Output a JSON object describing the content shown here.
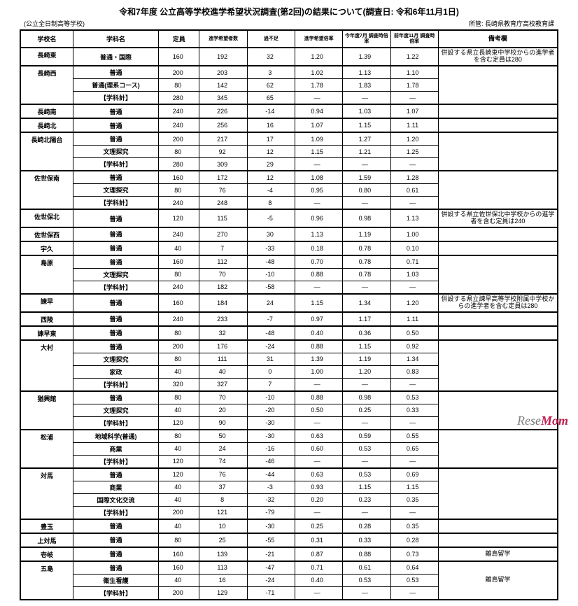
{
  "title": "令和7年度 公立高等学校進学希望状況調査(第2回)の結果について(調査日: 令和6年11月1日)",
  "subtitle_left": "(公立全日制高等学校)",
  "subtitle_right": "所管: 長崎県教育庁高校教育課",
  "headers": {
    "school": "学校名",
    "dept": "学科名",
    "capacity": "定員",
    "applicants": "進学希望者数",
    "diff": "過不足",
    "rate": "進学希望倍率",
    "rate_jul": "今年度7月\n調査時倍率",
    "rate_prev": "前年度11月\n調査時倍率",
    "remark": "備考欄"
  },
  "rows": [
    {
      "school": "長崎東",
      "dept": "普通・国際",
      "cap": "160",
      "app": "192",
      "diff": "32",
      "r": "1.20",
      "rj": "1.39",
      "rp": "1.22",
      "rem": "併設する県立長崎東中学校からの進学者を含む定員は280",
      "rs": 1,
      "topthick": true
    },
    {
      "school": "長崎西",
      "dept": "普通",
      "cap": "200",
      "app": "203",
      "diff": "3",
      "r": "1.02",
      "rj": "1.13",
      "rp": "1.10",
      "rem": "",
      "rs": 3,
      "topthick": true
    },
    {
      "school": "",
      "dept": "普通(理系コース)",
      "cap": "80",
      "app": "142",
      "diff": "62",
      "r": "1.78",
      "rj": "1.83",
      "rp": "1.78",
      "rem": ""
    },
    {
      "school": "",
      "dept": "【学科計】",
      "cap": "280",
      "app": "345",
      "diff": "65",
      "r": "—",
      "rj": "—",
      "rp": "—",
      "rem": ""
    },
    {
      "school": "長崎南",
      "dept": "普通",
      "cap": "240",
      "app": "226",
      "diff": "-14",
      "r": "0.94",
      "rj": "1.03",
      "rp": "1.07",
      "rem": "",
      "rs": 1,
      "topthick": true
    },
    {
      "school": "長崎北",
      "dept": "普通",
      "cap": "240",
      "app": "256",
      "diff": "16",
      "r": "1.07",
      "rj": "1.15",
      "rp": "1.11",
      "rem": "",
      "rs": 1,
      "topthick": true
    },
    {
      "school": "長崎北陽台",
      "dept": "普通",
      "cap": "200",
      "app": "217",
      "diff": "17",
      "r": "1.09",
      "rj": "1.27",
      "rp": "1.20",
      "rem": "",
      "rs": 3,
      "topthick": true
    },
    {
      "school": "",
      "dept": "文理探究",
      "cap": "80",
      "app": "92",
      "diff": "12",
      "r": "1.15",
      "rj": "1.21",
      "rp": "1.25",
      "rem": ""
    },
    {
      "school": "",
      "dept": "【学科計】",
      "cap": "280",
      "app": "309",
      "diff": "29",
      "r": "—",
      "rj": "—",
      "rp": "—",
      "rem": ""
    },
    {
      "school": "佐世保南",
      "dept": "普通",
      "cap": "160",
      "app": "172",
      "diff": "12",
      "r": "1.08",
      "rj": "1.59",
      "rp": "1.28",
      "rem": "",
      "rs": 3,
      "topthick": true
    },
    {
      "school": "",
      "dept": "文理探究",
      "cap": "80",
      "app": "76",
      "diff": "-4",
      "r": "0.95",
      "rj": "0.80",
      "rp": "0.61",
      "rem": ""
    },
    {
      "school": "",
      "dept": "【学科計】",
      "cap": "240",
      "app": "248",
      "diff": "8",
      "r": "—",
      "rj": "—",
      "rp": "—",
      "rem": ""
    },
    {
      "school": "佐世保北",
      "dept": "普通",
      "cap": "120",
      "app": "115",
      "diff": "-5",
      "r": "0.96",
      "rj": "0.98",
      "rp": "1.13",
      "rem": "併設する県立佐世保北中学校からの進学者を含む定員は240",
      "rs": 1,
      "topthick": true
    },
    {
      "school": "佐世保西",
      "dept": "普通",
      "cap": "240",
      "app": "270",
      "diff": "30",
      "r": "1.13",
      "rj": "1.19",
      "rp": "1.00",
      "rem": "",
      "rs": 1,
      "topthick": true
    },
    {
      "school": "宇久",
      "dept": "普通",
      "cap": "40",
      "app": "7",
      "diff": "-33",
      "r": "0.18",
      "rj": "0.78",
      "rp": "0.10",
      "rem": "",
      "rs": 1,
      "topthick": true
    },
    {
      "school": "島原",
      "dept": "普通",
      "cap": "160",
      "app": "112",
      "diff": "-48",
      "r": "0.70",
      "rj": "0.78",
      "rp": "0.71",
      "rem": "",
      "rs": 3,
      "topthick": true
    },
    {
      "school": "",
      "dept": "文理探究",
      "cap": "80",
      "app": "70",
      "diff": "-10",
      "r": "0.88",
      "rj": "0.78",
      "rp": "1.03",
      "rem": ""
    },
    {
      "school": "",
      "dept": "【学科計】",
      "cap": "240",
      "app": "182",
      "diff": "-58",
      "r": "—",
      "rj": "—",
      "rp": "—",
      "rem": ""
    },
    {
      "school": "諫早",
      "dept": "普通",
      "cap": "160",
      "app": "184",
      "diff": "24",
      "r": "1.15",
      "rj": "1.34",
      "rp": "1.20",
      "rem": "併設する県立諫早高等学校附属中学校からの進学者を含む定員は280",
      "rs": 1,
      "topthick": true
    },
    {
      "school": "西陵",
      "dept": "普通",
      "cap": "240",
      "app": "233",
      "diff": "-7",
      "r": "0.97",
      "rj": "1.17",
      "rp": "1.11",
      "rem": "",
      "rs": 1,
      "topthick": true
    },
    {
      "school": "諫早東",
      "dept": "普通",
      "cap": "80",
      "app": "32",
      "diff": "-48",
      "r": "0.40",
      "rj": "0.36",
      "rp": "0.50",
      "rem": "",
      "rs": 1,
      "topthick": true
    },
    {
      "school": "大村",
      "dept": "普通",
      "cap": "200",
      "app": "176",
      "diff": "-24",
      "r": "0.88",
      "rj": "1.15",
      "rp": "0.92",
      "rem": "",
      "rs": 4,
      "topthick": true
    },
    {
      "school": "",
      "dept": "文理探究",
      "cap": "80",
      "app": "111",
      "diff": "31",
      "r": "1.39",
      "rj": "1.19",
      "rp": "1.34",
      "rem": ""
    },
    {
      "school": "",
      "dept": "家政",
      "cap": "40",
      "app": "40",
      "diff": "0",
      "r": "1.00",
      "rj": "1.20",
      "rp": "0.83",
      "rem": ""
    },
    {
      "school": "",
      "dept": "【学科計】",
      "cap": "320",
      "app": "327",
      "diff": "7",
      "r": "—",
      "rj": "—",
      "rp": "—",
      "rem": ""
    },
    {
      "school": "猶興館",
      "dept": "普通",
      "cap": "80",
      "app": "70",
      "diff": "-10",
      "r": "0.88",
      "rj": "0.98",
      "rp": "0.53",
      "rem": "",
      "rs": 3,
      "topthick": true
    },
    {
      "school": "",
      "dept": "文理探究",
      "cap": "40",
      "app": "20",
      "diff": "-20",
      "r": "0.50",
      "rj": "0.25",
      "rp": "0.33",
      "rem": ""
    },
    {
      "school": "",
      "dept": "【学科計】",
      "cap": "120",
      "app": "90",
      "diff": "-30",
      "r": "—",
      "rj": "—",
      "rp": "—",
      "rem": ""
    },
    {
      "school": "松浦",
      "dept": "地域科学(普通)",
      "cap": "80",
      "app": "50",
      "diff": "-30",
      "r": "0.63",
      "rj": "0.59",
      "rp": "0.55",
      "rem": "",
      "rs": 3,
      "topthick": true
    },
    {
      "school": "",
      "dept": "商業",
      "cap": "40",
      "app": "24",
      "diff": "-16",
      "r": "0.60",
      "rj": "0.53",
      "rp": "0.65",
      "rem": ""
    },
    {
      "school": "",
      "dept": "【学科計】",
      "cap": "120",
      "app": "74",
      "diff": "-46",
      "r": "—",
      "rj": "—",
      "rp": "—",
      "rem": ""
    },
    {
      "school": "対馬",
      "dept": "普通",
      "cap": "120",
      "app": "76",
      "diff": "-44",
      "r": "0.63",
      "rj": "0.53",
      "rp": "0.69",
      "rem": "",
      "rs": 4,
      "topthick": true
    },
    {
      "school": "",
      "dept": "商業",
      "cap": "40",
      "app": "37",
      "diff": "-3",
      "r": "0.93",
      "rj": "1.15",
      "rp": "1.15",
      "rem": ""
    },
    {
      "school": "",
      "dept": "国際文化交流",
      "cap": "40",
      "app": "8",
      "diff": "-32",
      "r": "0.20",
      "rj": "0.23",
      "rp": "0.35",
      "rem": ""
    },
    {
      "school": "",
      "dept": "【学科計】",
      "cap": "200",
      "app": "121",
      "diff": "-79",
      "r": "—",
      "rj": "—",
      "rp": "—",
      "rem": ""
    },
    {
      "school": "豊玉",
      "dept": "普通",
      "cap": "40",
      "app": "10",
      "diff": "-30",
      "r": "0.25",
      "rj": "0.28",
      "rp": "0.35",
      "rem": "",
      "rs": 1,
      "topthick": true
    },
    {
      "school": "上対馬",
      "dept": "普通",
      "cap": "80",
      "app": "25",
      "diff": "-55",
      "r": "0.31",
      "rj": "0.33",
      "rp": "0.28",
      "rem": "",
      "rs": 1,
      "topthick": true
    },
    {
      "school": "壱岐",
      "dept": "普通",
      "cap": "160",
      "app": "139",
      "diff": "-21",
      "r": "0.87",
      "rj": "0.88",
      "rp": "0.73",
      "rem": "離島留学",
      "rs": 1,
      "topthick": true
    },
    {
      "school": "五島",
      "dept": "普通",
      "cap": "160",
      "app": "113",
      "diff": "-47",
      "r": "0.71",
      "rj": "0.61",
      "rp": "0.64",
      "rem": "離島留学",
      "rs": 3,
      "topthick": true
    },
    {
      "school": "",
      "dept": "衛生看護",
      "cap": "40",
      "app": "16",
      "diff": "-24",
      "r": "0.40",
      "rj": "0.53",
      "rp": "0.53",
      "rem": ""
    },
    {
      "school": "",
      "dept": "【学科計】",
      "cap": "200",
      "app": "129",
      "diff": "-71",
      "r": "—",
      "rj": "—",
      "rp": "—",
      "rem": ""
    }
  ],
  "watermark": {
    "re": "Re",
    "se": "se",
    "mom": "Mom"
  }
}
